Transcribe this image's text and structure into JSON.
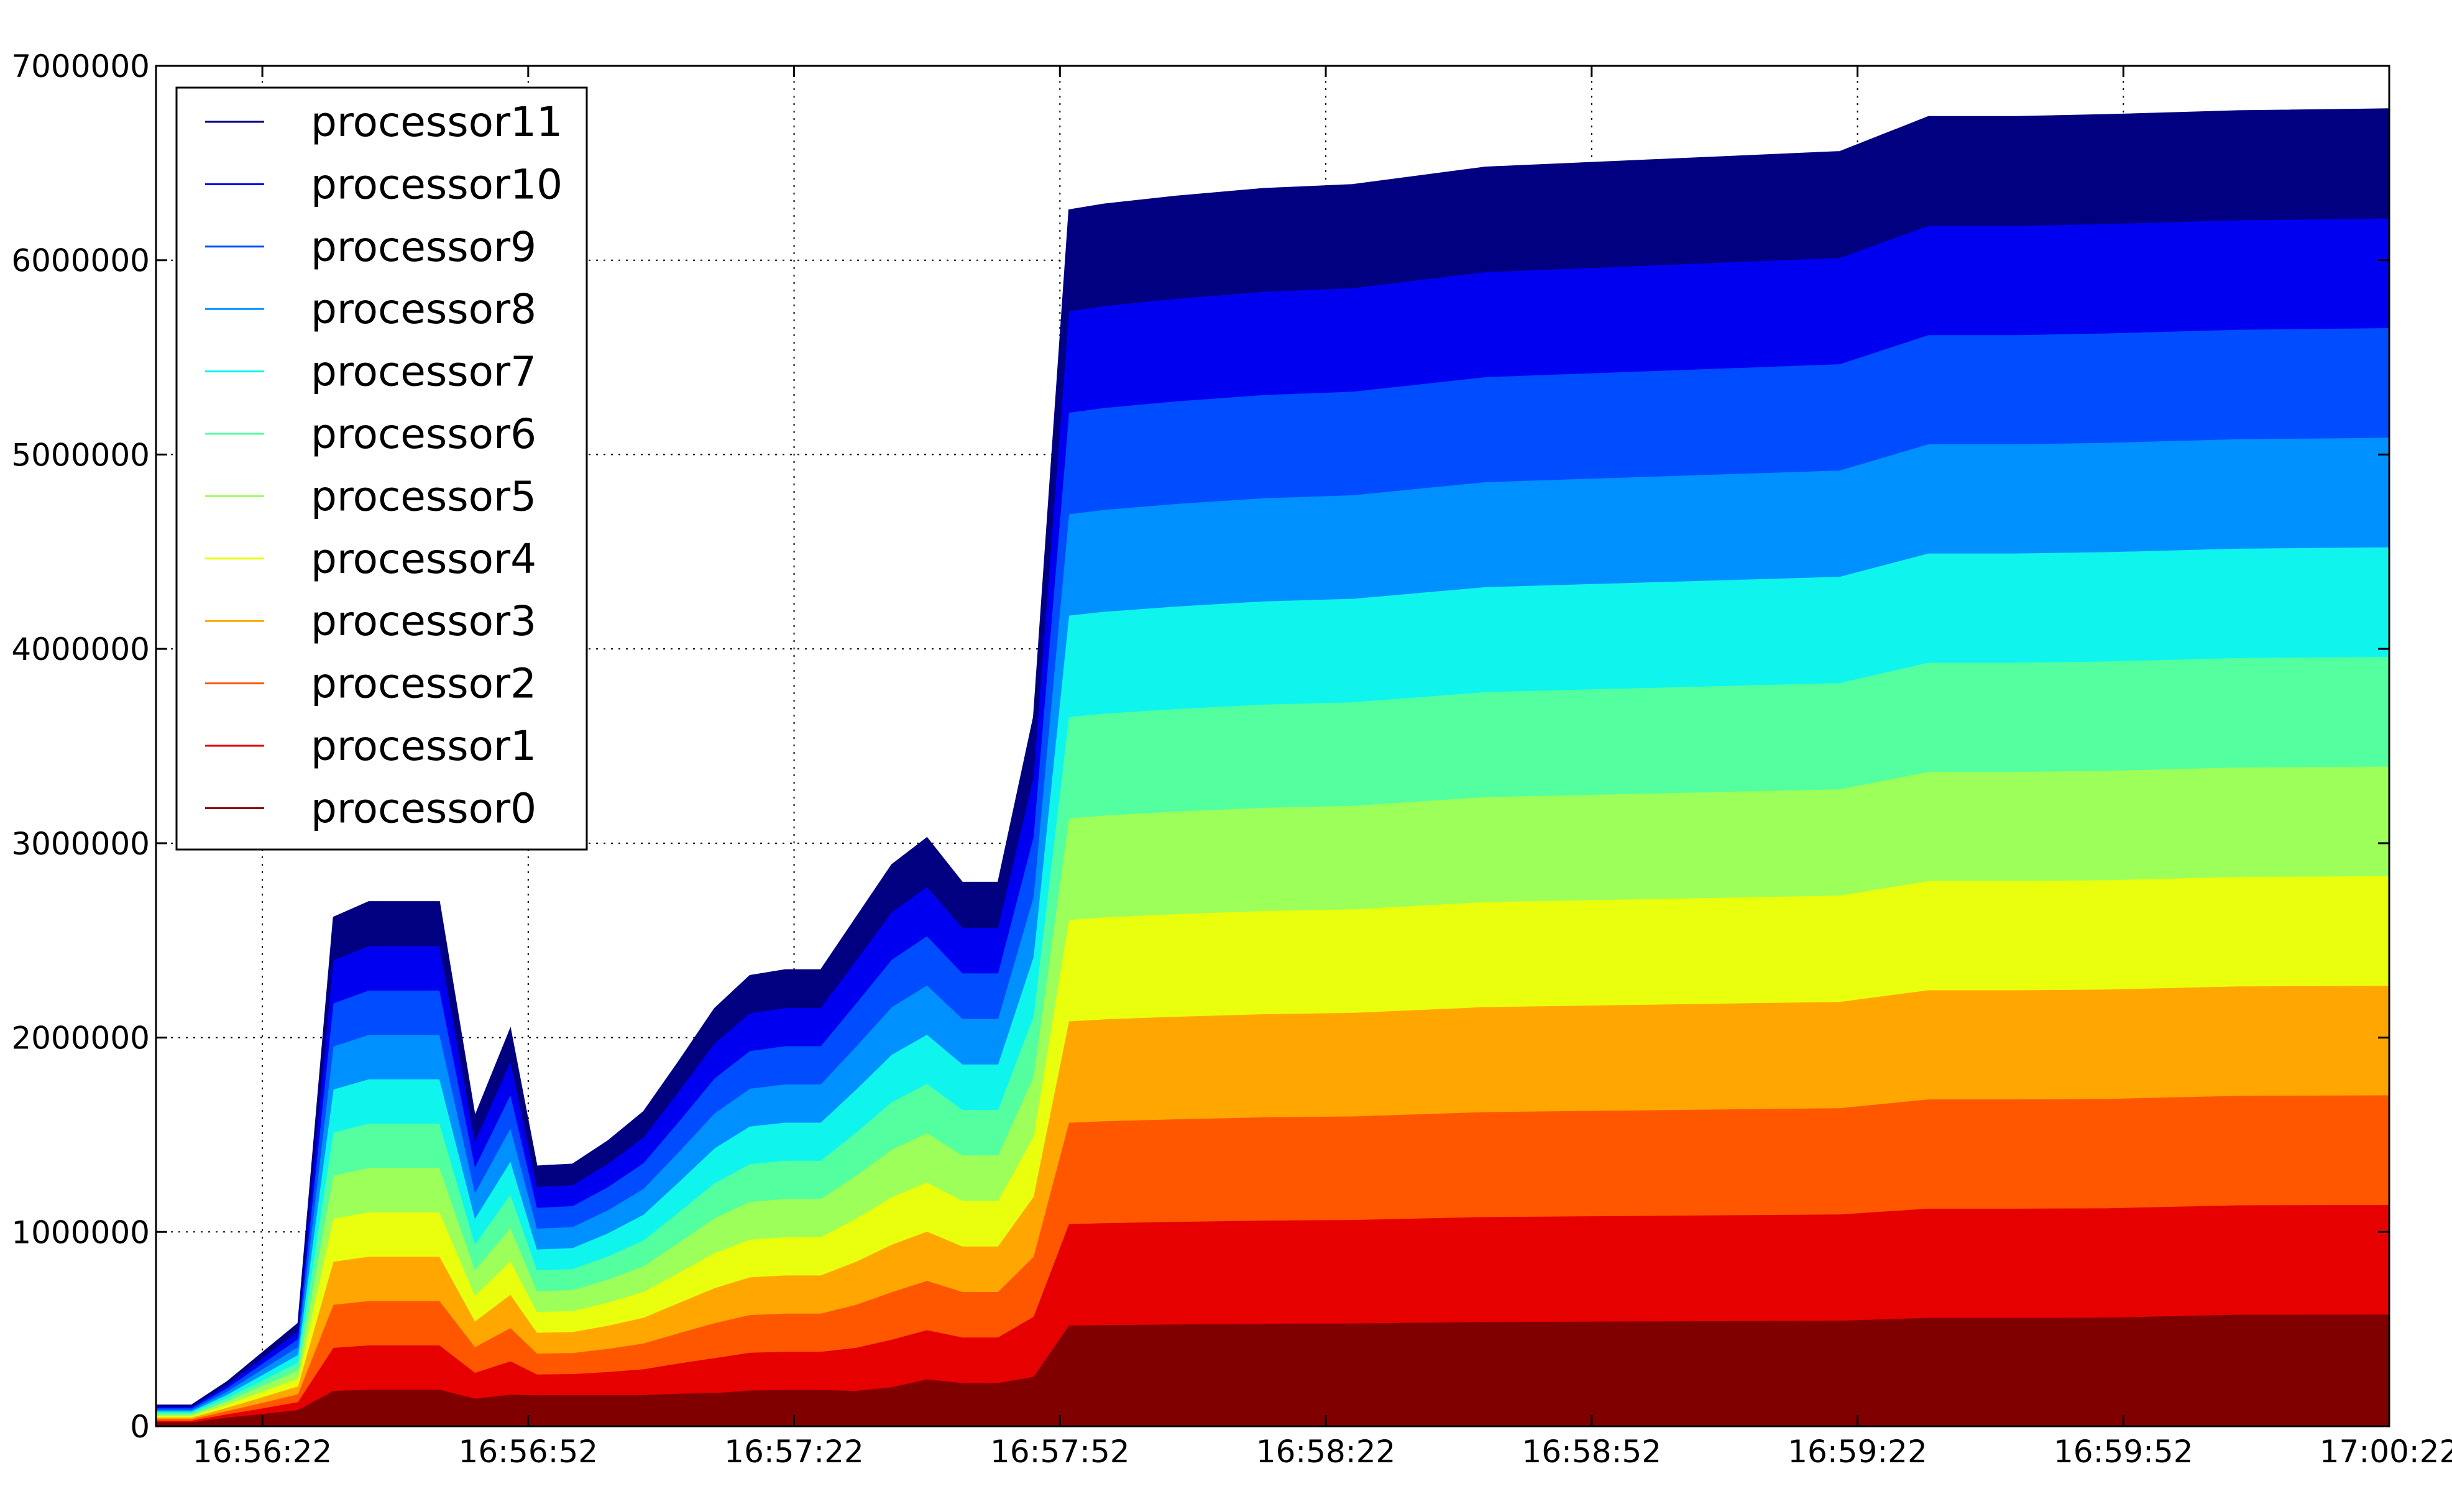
{
  "chart_data": {
    "type": "area",
    "stacked": true,
    "title": "",
    "xlabel": "",
    "ylabel": "",
    "xlim": [
      "16:56:10",
      "17:00:22"
    ],
    "ylim": [
      0,
      7000000
    ],
    "x_ticks": [
      "16:56:22",
      "16:56:52",
      "16:57:22",
      "16:57:52",
      "16:58:22",
      "16:58:52",
      "16:59:22",
      "16:59:52",
      "17:00:22"
    ],
    "y_ticks": [
      0,
      1000000,
      2000000,
      3000000,
      4000000,
      5000000,
      6000000,
      7000000
    ],
    "y_tick_labels": [
      "0",
      "1000000",
      "2000000",
      "3000000",
      "4000000",
      "5000000",
      "6000000",
      "7000000"
    ],
    "grid": true,
    "legend": {
      "placement": "upper-left"
    },
    "x": [
      "16:56:10",
      "16:56:14",
      "16:56:18",
      "16:56:22",
      "16:56:26",
      "16:56:30",
      "16:56:34",
      "16:56:38",
      "16:56:42",
      "16:56:46",
      "16:56:50",
      "16:56:53",
      "16:56:57",
      "16:57:01",
      "16:57:05",
      "16:57:09",
      "16:57:13",
      "16:57:17",
      "16:57:21",
      "16:57:25",
      "16:57:29",
      "16:57:33",
      "16:57:37",
      "16:57:41",
      "16:57:45",
      "16:57:49",
      "16:57:53",
      "16:57:57",
      "16:58:05",
      "16:58:15",
      "16:58:25",
      "16:58:40",
      "16:58:55",
      "16:59:10",
      "16:59:20",
      "16:59:30",
      "16:59:40",
      "16:59:50",
      "17:00:05",
      "17:00:22"
    ],
    "totals": [
      110000,
      110000,
      230000,
      380000,
      530000,
      2620000,
      2700000,
      2700000,
      2700000,
      1600000,
      2050000,
      1340000,
      1350000,
      1470000,
      1620000,
      1880000,
      2150000,
      2320000,
      2350000,
      2350000,
      2620000,
      2890000,
      3030000,
      2800000,
      2800000,
      3650000,
      6260000,
      6290000,
      6330000,
      6370000,
      6390000,
      6480000,
      6510000,
      6540000,
      6560000,
      6740000,
      6740000,
      6750000,
      6770000,
      6780000
    ],
    "proc0_fraction": [
      0.2,
      0.2,
      0.2,
      0.17,
      0.16,
      0.07,
      0.07,
      0.07,
      0.07,
      0.09,
      0.08,
      0.12,
      0.12,
      0.11,
      0.1,
      0.09,
      0.08,
      0.08,
      0.08,
      0.08,
      0.07,
      0.07,
      0.08,
      0.08,
      0.08,
      0.07,
      0.083,
      0.083,
      0.083,
      0.083,
      0.083,
      0.083,
      0.083,
      0.083,
      0.083,
      0.083,
      0.083,
      0.083,
      0.085,
      0.085
    ],
    "series": [
      {
        "name": "processor11",
        "color": "#000080"
      },
      {
        "name": "processor10",
        "color": "#0000f1"
      },
      {
        "name": "processor9",
        "color": "#004cff"
      },
      {
        "name": "processor8",
        "color": "#0090ff"
      },
      {
        "name": "processor7",
        "color": "#0ff5ed"
      },
      {
        "name": "processor6",
        "color": "#53ff9f"
      },
      {
        "name": "processor5",
        "color": "#9dff5a"
      },
      {
        "name": "processor4",
        "color": "#eaff0d"
      },
      {
        "name": "processor3",
        "color": "#ffa700"
      },
      {
        "name": "processor2",
        "color": "#ff5700"
      },
      {
        "name": "processor1",
        "color": "#e60000"
      },
      {
        "name": "processor0",
        "color": "#800000"
      }
    ]
  }
}
